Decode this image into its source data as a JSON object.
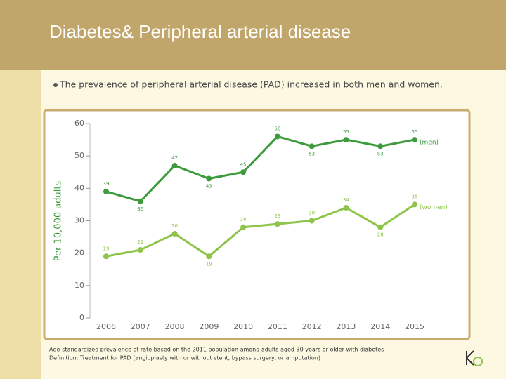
{
  "header": {
    "title": "Diabetes& Peripheral arterial disease",
    "bullet": "The prevalence of peripheral arterial disease (PAD) increased in both men and women."
  },
  "chart_data": {
    "type": "line",
    "y_label": "Per 10,000 adults",
    "categories": [
      "2006",
      "2007",
      "2008",
      "2009",
      "2010",
      "2011",
      "2012",
      "2013",
      "2014",
      "2015"
    ],
    "series": [
      {
        "name": "(men)",
        "color": "#3d9b3d",
        "values": [
          39,
          36,
          47,
          43,
          45,
          56,
          53,
          55,
          53,
          55
        ]
      },
      {
        "name": "(women)",
        "color": "#8dc449",
        "values": [
          19,
          21,
          26,
          19,
          28,
          29,
          30,
          34,
          28,
          35
        ]
      }
    ],
    "ylim": [
      0,
      60
    ],
    "yticks": [
      0,
      10,
      20,
      30,
      40,
      50,
      60
    ]
  },
  "notes": [
    "Age-standardized prevalence of rate based on the 2011 population among adults aged 30 years or older with diabetes",
    "Definition: Treatment for PAD (angioplasty with or without stent, bypass surgery, or amputation)"
  ]
}
